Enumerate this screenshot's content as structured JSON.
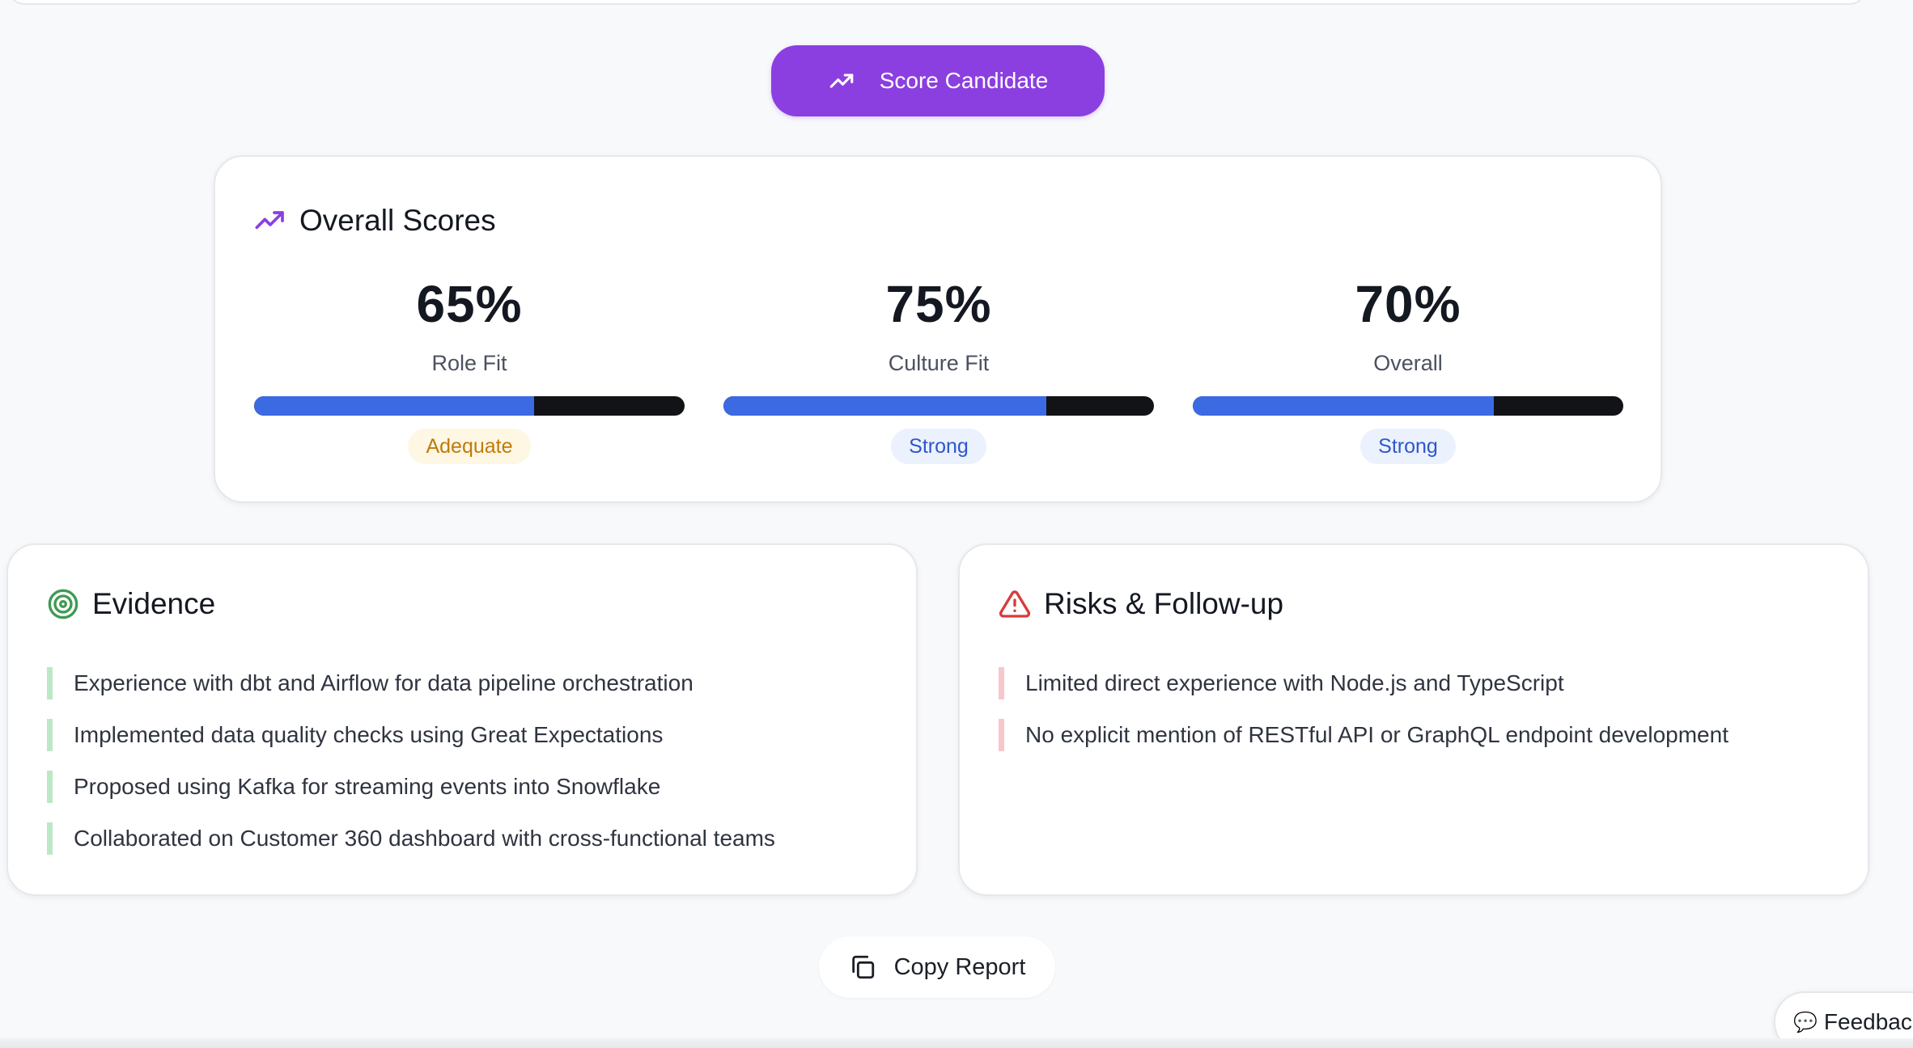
{
  "actions": {
    "score_button_label": "Score Candidate",
    "copy_button_label": "Copy Report",
    "feedback_label": "Feedbac"
  },
  "scores": {
    "title": "Overall Scores",
    "items": [
      {
        "value": "65%",
        "label": "Role Fit",
        "fill": 0.65,
        "rating": "Adequate",
        "rating_kind": "adequate"
      },
      {
        "value": "75%",
        "label": "Culture Fit",
        "fill": 0.75,
        "rating": "Strong",
        "rating_kind": "strong"
      },
      {
        "value": "70%",
        "label": "Overall",
        "fill": 0.7,
        "rating": "Strong",
        "rating_kind": "strong"
      }
    ]
  },
  "evidence": {
    "title": "Evidence",
    "items": [
      "Experience with dbt and Airflow for data pipeline orchestration",
      "Implemented data quality checks using Great Expectations",
      "Proposed using Kafka for streaming events into Snowflake",
      "Collaborated on Customer 360 dashboard with cross-functional teams"
    ]
  },
  "risks": {
    "title": "Risks & Follow-up",
    "items": [
      "Limited direct experience with Node.js and TypeScript",
      "No explicit mention of RESTful API or GraphQL endpoint development"
    ]
  },
  "colors": {
    "primary": "#8b3fe0",
    "bar_fill": "#3b6ae3",
    "bar_track": "#111316",
    "evidence_accent": "#bce8c6",
    "risk_accent": "#f6c7cb",
    "warning_icon": "#d93a3a",
    "target_icon": "#3f9a54"
  },
  "icons": {
    "score_button": "trending-up-icon",
    "scores_header": "trending-up-icon",
    "evidence_header": "target-icon",
    "risks_header": "warning-triangle-icon",
    "copy_button": "copy-icon",
    "feedback": "chat-bubble-icon"
  }
}
